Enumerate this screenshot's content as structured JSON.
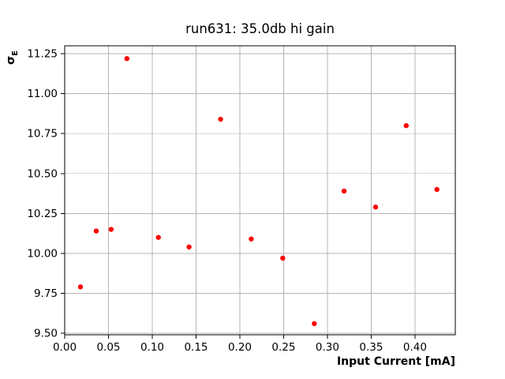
{
  "figure": {
    "background": "#ffffff",
    "text_color": "#000000"
  },
  "chart_data": {
    "type": "scatter",
    "title": "run631: 35.0db hi gain",
    "xlabel": "Input Current [mA]",
    "ylabel": "σ_E",
    "ylabel_main": "σ",
    "ylabel_sub": "E",
    "x": [
      0.018,
      0.036,
      0.053,
      0.071,
      0.107,
      0.142,
      0.178,
      0.213,
      0.249,
      0.285,
      0.319,
      0.355,
      0.39,
      0.425
    ],
    "y": [
      9.79,
      10.14,
      10.15,
      11.22,
      10.1,
      10.04,
      10.84,
      10.09,
      9.97,
      9.56,
      10.39,
      10.29,
      10.8,
      10.4
    ],
    "xlim": [
      0.0,
      0.446
    ],
    "ylim": [
      9.49,
      11.3
    ],
    "xticks": [
      0.0,
      0.05,
      0.1,
      0.15,
      0.2,
      0.25,
      0.3,
      0.35,
      0.4
    ],
    "xtick_labels": [
      "0.00",
      "0.05",
      "0.10",
      "0.15",
      "0.20",
      "0.25",
      "0.30",
      "0.35",
      "0.40"
    ],
    "yticks": [
      9.5,
      9.75,
      10.0,
      10.25,
      10.5,
      10.75,
      11.0,
      11.25
    ],
    "ytick_labels": [
      "9.50",
      "9.75",
      "10.00",
      "10.25",
      "10.50",
      "10.75",
      "11.00",
      "11.25"
    ],
    "grid": true,
    "grid_color": "#b4b4b4",
    "spine_color": "#000000",
    "marker_color": "#ff0000",
    "marker_radius_px": 3.2,
    "legend_position": "none"
  }
}
